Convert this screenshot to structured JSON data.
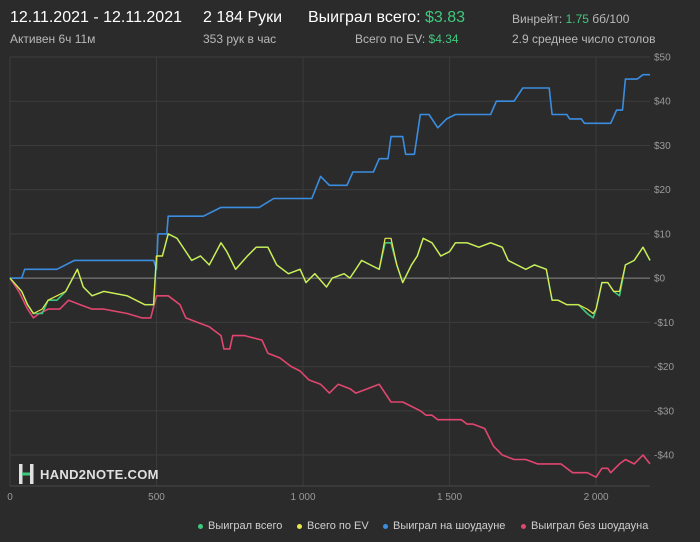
{
  "header": {
    "date_range": "12.11.2021 - 12.11.2021",
    "active": "Активен 6ч 11м",
    "hands": "2 184 Руки",
    "hands_per_hour": "353 рук в час",
    "won_label": "Выиграл всего:",
    "won_value": "$3.83",
    "ev_label": "Всего по EV:",
    "ev_value": "$4.34",
    "winrate_label": "Винрейт:",
    "winrate_value": "1.75",
    "winrate_unit": "бб/100",
    "tables": "2.9 среднее число столов"
  },
  "logo": {
    "text": "HAND2NOTE.COM"
  },
  "legend": {
    "items": [
      {
        "label": "Выиграл всего",
        "color": "#3ec97c"
      },
      {
        "label": "Всего по EV",
        "color": "#e8e84a"
      },
      {
        "label": "Выиграл на шоудауне",
        "color": "#3a8de0"
      },
      {
        "label": "Выиграл без шоудауна",
        "color": "#e0466f"
      }
    ]
  },
  "chart_data": {
    "type": "line",
    "x_ticks": [
      {
        "value": 0,
        "label": "0"
      },
      {
        "value": 500,
        "label": "500"
      },
      {
        "value": 1000,
        "label": "1 000"
      },
      {
        "value": 1500,
        "label": "1 500"
      },
      {
        "value": 2000,
        "label": "2 000"
      }
    ],
    "y_ticks": [
      {
        "value": 50,
        "label": "$50"
      },
      {
        "value": 40,
        "label": "$40"
      },
      {
        "value": 30,
        "label": "$30"
      },
      {
        "value": 20,
        "label": "$20"
      },
      {
        "value": 10,
        "label": "$10"
      },
      {
        "value": 0,
        "label": "$0"
      },
      {
        "value": -10,
        "label": "-$10"
      },
      {
        "value": -20,
        "label": "-$20"
      },
      {
        "value": -30,
        "label": "-$30"
      },
      {
        "value": -40,
        "label": "-$40"
      }
    ],
    "xlim": [
      0,
      2184
    ],
    "ylim": [
      -47,
      50
    ],
    "grid": true,
    "series": [
      {
        "name": "Выиграл на шоудауне",
        "color": "#3a8de0",
        "points": [
          [
            0,
            0
          ],
          [
            40,
            0
          ],
          [
            50,
            2
          ],
          [
            160,
            2
          ],
          [
            220,
            4
          ],
          [
            450,
            4
          ],
          [
            490,
            4
          ],
          [
            500,
            2
          ],
          [
            505,
            10
          ],
          [
            535,
            10
          ],
          [
            540,
            14
          ],
          [
            660,
            14
          ],
          [
            720,
            16
          ],
          [
            850,
            16
          ],
          [
            900,
            18
          ],
          [
            1030,
            18
          ],
          [
            1060,
            23
          ],
          [
            1090,
            21
          ],
          [
            1150,
            21
          ],
          [
            1170,
            24
          ],
          [
            1240,
            24
          ],
          [
            1260,
            27
          ],
          [
            1290,
            27
          ],
          [
            1300,
            32
          ],
          [
            1340,
            32
          ],
          [
            1350,
            28
          ],
          [
            1380,
            28
          ],
          [
            1400,
            37
          ],
          [
            1430,
            37
          ],
          [
            1460,
            34
          ],
          [
            1490,
            36
          ],
          [
            1520,
            37
          ],
          [
            1640,
            37
          ],
          [
            1660,
            40
          ],
          [
            1720,
            40
          ],
          [
            1750,
            43
          ],
          [
            1840,
            43
          ],
          [
            1850,
            37
          ],
          [
            1900,
            37
          ],
          [
            1910,
            36
          ],
          [
            1950,
            36
          ],
          [
            1960,
            35
          ],
          [
            2050,
            35
          ],
          [
            2070,
            38
          ],
          [
            2090,
            38
          ],
          [
            2100,
            45
          ],
          [
            2140,
            45
          ],
          [
            2160,
            46
          ],
          [
            2184,
            46
          ]
        ]
      },
      {
        "name": "Выиграл всего",
        "color": "#3ec97c",
        "points": [
          [
            0,
            0
          ],
          [
            40,
            -3
          ],
          [
            60,
            -6
          ],
          [
            80,
            -8
          ],
          [
            110,
            -8
          ],
          [
            130,
            -5
          ],
          [
            160,
            -5
          ],
          [
            190,
            -3
          ],
          [
            230,
            2
          ],
          [
            250,
            -2
          ],
          [
            280,
            -4
          ],
          [
            320,
            -3
          ],
          [
            400,
            -4
          ],
          [
            460,
            -6
          ],
          [
            490,
            -6
          ],
          [
            500,
            5
          ],
          [
            520,
            5
          ],
          [
            540,
            10
          ],
          [
            570,
            9
          ],
          [
            590,
            7
          ],
          [
            620,
            4
          ],
          [
            650,
            5
          ],
          [
            680,
            3
          ],
          [
            720,
            8
          ],
          [
            740,
            6
          ],
          [
            770,
            2
          ],
          [
            810,
            5
          ],
          [
            840,
            7
          ],
          [
            880,
            7
          ],
          [
            910,
            3
          ],
          [
            950,
            1
          ],
          [
            990,
            2
          ],
          [
            1010,
            -1
          ],
          [
            1040,
            1
          ],
          [
            1080,
            -2
          ],
          [
            1100,
            0
          ],
          [
            1140,
            1
          ],
          [
            1160,
            0
          ],
          [
            1180,
            2
          ],
          [
            1200,
            4
          ],
          [
            1230,
            3
          ],
          [
            1260,
            2
          ],
          [
            1280,
            8
          ],
          [
            1300,
            8
          ],
          [
            1320,
            3
          ],
          [
            1340,
            -1
          ],
          [
            1370,
            3
          ],
          [
            1390,
            5
          ],
          [
            1410,
            9
          ],
          [
            1440,
            8
          ],
          [
            1470,
            5
          ],
          [
            1500,
            6
          ],
          [
            1520,
            8
          ],
          [
            1560,
            8
          ],
          [
            1600,
            7
          ],
          [
            1640,
            8
          ],
          [
            1680,
            7
          ],
          [
            1700,
            4
          ],
          [
            1730,
            3
          ],
          [
            1760,
            2
          ],
          [
            1790,
            3
          ],
          [
            1830,
            2
          ],
          [
            1850,
            -5
          ],
          [
            1870,
            -5
          ],
          [
            1900,
            -6
          ],
          [
            1940,
            -6
          ],
          [
            1970,
            -8
          ],
          [
            1990,
            -9
          ],
          [
            2000,
            -7
          ],
          [
            2020,
            -1
          ],
          [
            2040,
            -1
          ],
          [
            2060,
            -3
          ],
          [
            2080,
            -4
          ],
          [
            2100,
            3
          ],
          [
            2130,
            4
          ],
          [
            2160,
            7
          ],
          [
            2184,
            4
          ]
        ]
      },
      {
        "name": "Всего по EV",
        "color": "#e8e84a",
        "points": [
          [
            0,
            0
          ],
          [
            40,
            -3
          ],
          [
            60,
            -6
          ],
          [
            80,
            -8
          ],
          [
            110,
            -7
          ],
          [
            130,
            -5
          ],
          [
            160,
            -4
          ],
          [
            190,
            -3
          ],
          [
            230,
            2
          ],
          [
            250,
            -2
          ],
          [
            280,
            -4
          ],
          [
            320,
            -3
          ],
          [
            400,
            -4
          ],
          [
            460,
            -6
          ],
          [
            490,
            -6
          ],
          [
            500,
            5
          ],
          [
            520,
            5
          ],
          [
            540,
            10
          ],
          [
            570,
            9
          ],
          [
            590,
            7
          ],
          [
            620,
            4
          ],
          [
            650,
            5
          ],
          [
            680,
            3
          ],
          [
            720,
            8
          ],
          [
            740,
            6
          ],
          [
            770,
            2
          ],
          [
            810,
            5
          ],
          [
            840,
            7
          ],
          [
            880,
            7
          ],
          [
            910,
            3
          ],
          [
            950,
            1
          ],
          [
            990,
            2
          ],
          [
            1010,
            -1
          ],
          [
            1040,
            1
          ],
          [
            1080,
            -2
          ],
          [
            1100,
            0
          ],
          [
            1140,
            1
          ],
          [
            1160,
            0
          ],
          [
            1180,
            2
          ],
          [
            1200,
            4
          ],
          [
            1230,
            3
          ],
          [
            1260,
            2
          ],
          [
            1280,
            9
          ],
          [
            1300,
            9
          ],
          [
            1320,
            3
          ],
          [
            1340,
            -1
          ],
          [
            1370,
            3
          ],
          [
            1390,
            5
          ],
          [
            1410,
            9
          ],
          [
            1440,
            8
          ],
          [
            1470,
            5
          ],
          [
            1500,
            6
          ],
          [
            1520,
            8
          ],
          [
            1560,
            8
          ],
          [
            1600,
            7
          ],
          [
            1640,
            8
          ],
          [
            1680,
            7
          ],
          [
            1700,
            4
          ],
          [
            1730,
            3
          ],
          [
            1760,
            2
          ],
          [
            1790,
            3
          ],
          [
            1830,
            2
          ],
          [
            1850,
            -5
          ],
          [
            1870,
            -5
          ],
          [
            1900,
            -6
          ],
          [
            1940,
            -6
          ],
          [
            1970,
            -7
          ],
          [
            1990,
            -8
          ],
          [
            2000,
            -7
          ],
          [
            2020,
            -1
          ],
          [
            2040,
            -1
          ],
          [
            2060,
            -3
          ],
          [
            2080,
            -3
          ],
          [
            2100,
            3
          ],
          [
            2130,
            4
          ],
          [
            2160,
            7
          ],
          [
            2184,
            4
          ]
        ]
      },
      {
        "name": "Выиграл без шоудауна",
        "color": "#e0466f",
        "points": [
          [
            0,
            0
          ],
          [
            30,
            -3
          ],
          [
            60,
            -7
          ],
          [
            80,
            -9
          ],
          [
            100,
            -8
          ],
          [
            130,
            -7
          ],
          [
            170,
            -7
          ],
          [
            200,
            -5
          ],
          [
            240,
            -6
          ],
          [
            280,
            -7
          ],
          [
            320,
            -7
          ],
          [
            400,
            -8
          ],
          [
            450,
            -9
          ],
          [
            480,
            -9
          ],
          [
            500,
            -4
          ],
          [
            520,
            -4
          ],
          [
            540,
            -4
          ],
          [
            560,
            -5
          ],
          [
            580,
            -6
          ],
          [
            600,
            -9
          ],
          [
            640,
            -10
          ],
          [
            680,
            -11
          ],
          [
            720,
            -13
          ],
          [
            730,
            -16
          ],
          [
            750,
            -16
          ],
          [
            760,
            -13
          ],
          [
            800,
            -13
          ],
          [
            860,
            -14
          ],
          [
            880,
            -17
          ],
          [
            920,
            -18
          ],
          [
            960,
            -20
          ],
          [
            990,
            -21
          ],
          [
            1020,
            -23
          ],
          [
            1060,
            -24
          ],
          [
            1090,
            -26
          ],
          [
            1120,
            -24
          ],
          [
            1160,
            -25
          ],
          [
            1180,
            -26
          ],
          [
            1220,
            -25
          ],
          [
            1260,
            -24
          ],
          [
            1280,
            -26
          ],
          [
            1300,
            -28
          ],
          [
            1340,
            -28
          ],
          [
            1370,
            -29
          ],
          [
            1400,
            -30
          ],
          [
            1420,
            -31
          ],
          [
            1440,
            -31
          ],
          [
            1460,
            -32
          ],
          [
            1500,
            -32
          ],
          [
            1540,
            -32
          ],
          [
            1560,
            -33
          ],
          [
            1580,
            -33
          ],
          [
            1620,
            -34
          ],
          [
            1650,
            -38
          ],
          [
            1680,
            -40
          ],
          [
            1720,
            -41
          ],
          [
            1760,
            -41
          ],
          [
            1800,
            -42
          ],
          [
            1840,
            -42
          ],
          [
            1880,
            -42
          ],
          [
            1920,
            -44
          ],
          [
            1950,
            -44
          ],
          [
            1970,
            -44
          ],
          [
            2000,
            -45
          ],
          [
            2020,
            -43
          ],
          [
            2040,
            -43
          ],
          [
            2050,
            -44
          ],
          [
            2080,
            -42
          ],
          [
            2100,
            -41
          ],
          [
            2130,
            -42
          ],
          [
            2160,
            -40
          ],
          [
            2184,
            -42
          ]
        ]
      }
    ]
  }
}
